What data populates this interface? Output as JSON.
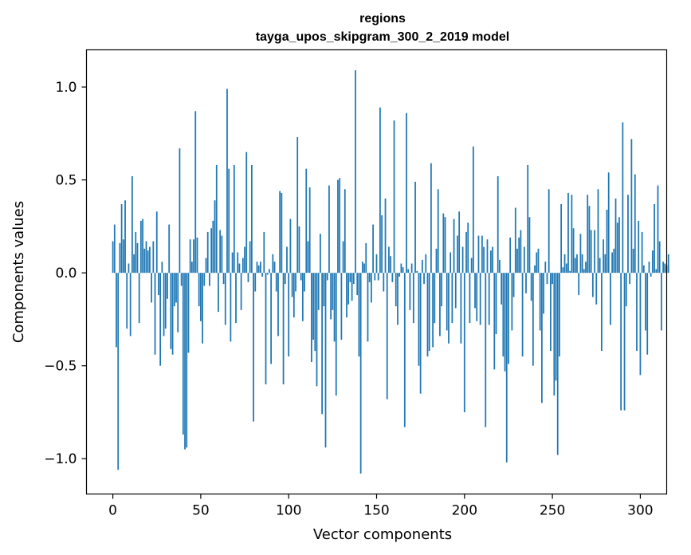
{
  "chart_data": {
    "type": "bar",
    "title": "regions",
    "subtitle": "tayga_upos_skipgram_300_2_2019 model",
    "xlabel": "Vector components",
    "ylabel": "Components values",
    "xlim": [
      -15,
      315
    ],
    "ylim": [
      -1.19,
      1.2
    ],
    "xticks": [
      0,
      50,
      100,
      150,
      200,
      250,
      300
    ],
    "yticks": [
      -1.0,
      -0.5,
      0.0,
      0.5,
      1.0
    ],
    "xtick_labels": [
      "0",
      "50",
      "100",
      "150",
      "200",
      "250",
      "300"
    ],
    "ytick_labels": [
      "−1.0",
      "−0.5",
      "0.0",
      "0.5",
      "1.0"
    ],
    "bar_color": "#1f77b4",
    "grid": false,
    "x_start": 0,
    "values": [
      0.17,
      0.26,
      -0.4,
      -1.06,
      0.16,
      0.37,
      0.18,
      0.39,
      -0.3,
      0.05,
      -0.34,
      0.52,
      0.1,
      0.22,
      0.16,
      -0.27,
      0.28,
      0.29,
      0.13,
      0.17,
      0.12,
      0.14,
      -0.16,
      0.17,
      -0.44,
      0.33,
      -0.12,
      -0.5,
      0.06,
      -0.34,
      -0.3,
      -0.14,
      0.26,
      -0.41,
      -0.44,
      -0.18,
      -0.16,
      -0.32,
      0.67,
      -0.07,
      -0.87,
      -0.95,
      -0.94,
      -0.43,
      0.18,
      0.06,
      0.18,
      0.87,
      0.19,
      -0.18,
      -0.26,
      -0.38,
      -0.07,
      0.08,
      0.22,
      -0.07,
      0.24,
      0.28,
      0.39,
      0.58,
      -0.21,
      0.23,
      0.2,
      -0.06,
      -0.28,
      0.99,
      0.56,
      -0.37,
      0.11,
      0.58,
      -0.27,
      0.11,
      0.05,
      -0.2,
      0.08,
      0.14,
      0.65,
      -0.05,
      0.17,
      0.58,
      -0.8,
      -0.1,
      0.06,
      0.04,
      0.06,
      -0.02,
      0.22,
      -0.6,
      -0.01,
      0.02,
      -0.49,
      0.1,
      0.06,
      -0.1,
      -0.34,
      0.44,
      0.43,
      -0.6,
      -0.06,
      0.14,
      -0.45,
      0.29,
      -0.13,
      -0.24,
      -0.1,
      0.73,
      0.25,
      -0.04,
      -0.26,
      -0.1,
      0.56,
      0.17,
      0.46,
      -0.48,
      -0.36,
      -0.42,
      -0.61,
      -0.2,
      0.21,
      -0.76,
      -0.18,
      -0.94,
      -0.04,
      0.47,
      -0.25,
      -0.2,
      -0.37,
      -0.66,
      0.5,
      0.51,
      -0.36,
      0.17,
      0.45,
      -0.24,
      -0.17,
      -0.05,
      -0.15,
      -0.06,
      1.09,
      -0.12,
      -0.45,
      -1.08,
      0.06,
      0.05,
      0.16,
      -0.37,
      -0.05,
      -0.16,
      0.26,
      -0.04,
      0.1,
      -0.04,
      0.89,
      0.31,
      -0.1,
      0.4,
      -0.68,
      0.14,
      0.09,
      -0.05,
      0.82,
      -0.18,
      -0.28,
      -0.02,
      0.05,
      0.03,
      -0.83,
      0.86,
      0.02,
      -0.2,
      0.05,
      -0.27,
      0.49,
      0.01,
      -0.5,
      -0.65,
      0.07,
      -0.06,
      0.1,
      -0.45,
      -0.42,
      0.59,
      -0.4,
      -0.27,
      0.13,
      0.45,
      -0.34,
      -0.18,
      0.32,
      0.3,
      -0.31,
      -0.38,
      0.11,
      -0.27,
      0.29,
      -0.19,
      0.2,
      0.33,
      -0.38,
      0.14,
      -0.75,
      0.22,
      0.27,
      -0.27,
      0.08,
      0.68,
      -0.19,
      -0.26,
      0.2,
      -0.28,
      0.2,
      0.14,
      -0.83,
      0.18,
      -0.28,
      0.12,
      0.14,
      -0.52,
      -0.33,
      0.52,
      0.07,
      -0.17,
      -0.45,
      -0.53,
      -1.02,
      -0.49,
      0.19,
      -0.31,
      -0.13,
      0.35,
      0.13,
      0.19,
      0.23,
      -0.45,
      0.14,
      -0.11,
      0.58,
      0.3,
      -0.15,
      -0.5,
      0.04,
      0.11,
      0.13,
      -0.31,
      -0.7,
      -0.22,
      0.06,
      -0.06,
      0.45,
      -0.42,
      -0.06,
      -0.66,
      -0.58,
      -0.98,
      -0.45,
      0.37,
      0.03,
      0.1,
      0.05,
      0.43,
      0.01,
      0.42,
      0.24,
      0.08,
      0.1,
      -0.12,
      0.21,
      0.1,
      0.02,
      0.06,
      0.42,
      0.36,
      0.23,
      -0.13,
      0.23,
      -0.17,
      0.45,
      0.08,
      -0.42,
      0.18,
      0.1,
      0.34,
      0.54,
      -0.28,
      0.11,
      0.13,
      0.4,
      0.27,
      0.3,
      -0.74,
      0.81,
      -0.74,
      -0.18,
      0.42,
      -0.06,
      0.72,
      0.13,
      0.53,
      -0.42,
      0.28,
      -0.55,
      0.22,
      0.04,
      -0.31,
      -0.44,
      0.06,
      -0.02,
      0.12,
      0.37,
      0.02,
      0.47,
      0.17,
      -0.31,
      0.06,
      0.05,
      0.04,
      0.1
    ]
  }
}
